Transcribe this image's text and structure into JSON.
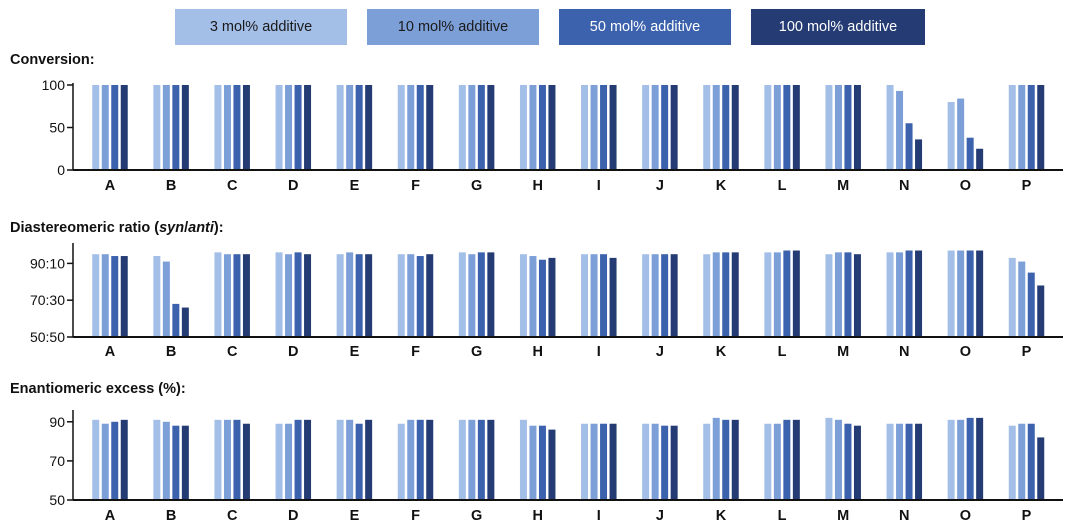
{
  "legend": {
    "items": [
      {
        "label": "3 mol% additive",
        "color": "#a3bfe8",
        "text_color": "#1a1a1a"
      },
      {
        "label": "10 mol% additive",
        "color": "#7d9fd8",
        "text_color": "#1a1a1a"
      },
      {
        "label": "50 mol% additive",
        "color": "#3c62ad",
        "text_color": "#ffffff"
      },
      {
        "label": "100 mol% additive",
        "color": "#243c73",
        "text_color": "#ffffff"
      }
    ]
  },
  "chart_data": [
    {
      "type": "bar",
      "title": "Conversion:",
      "categories": [
        "A",
        "B",
        "C",
        "D",
        "E",
        "F",
        "G",
        "H",
        "I",
        "J",
        "K",
        "L",
        "M",
        "N",
        "O",
        "P"
      ],
      "ylim": [
        0,
        100
      ],
      "ticks": [
        {
          "value": 0,
          "label": "0"
        },
        {
          "value": 50,
          "label": "50"
        },
        {
          "value": 100,
          "label": "100"
        }
      ],
      "series": [
        {
          "values": [
            100,
            100,
            100,
            100,
            100,
            100,
            100,
            100,
            100,
            100,
            100,
            100,
            100,
            100,
            80,
            100
          ]
        },
        {
          "values": [
            100,
            100,
            100,
            100,
            100,
            100,
            100,
            100,
            100,
            100,
            100,
            100,
            100,
            93,
            84,
            100
          ]
        },
        {
          "values": [
            100,
            100,
            100,
            100,
            100,
            100,
            100,
            100,
            100,
            100,
            100,
            100,
            100,
            55,
            38,
            100
          ]
        },
        {
          "values": [
            100,
            100,
            100,
            100,
            100,
            100,
            100,
            100,
            100,
            100,
            100,
            100,
            100,
            36,
            25,
            100
          ]
        }
      ]
    },
    {
      "type": "bar",
      "title": "Diastereomeric ratio (syn/anti):",
      "title_parts": [
        {
          "text": "Diastereomeric ratio (",
          "italic": false
        },
        {
          "text": "syn",
          "italic": true
        },
        {
          "text": "/",
          "italic": false
        },
        {
          "text": "anti",
          "italic": true
        },
        {
          "text": "):",
          "italic": false
        }
      ],
      "categories": [
        "A",
        "B",
        "C",
        "D",
        "E",
        "F",
        "G",
        "H",
        "I",
        "J",
        "K",
        "L",
        "M",
        "N",
        "O",
        "P"
      ],
      "ylim": [
        50,
        100
      ],
      "ticks": [
        {
          "value": 50,
          "label": "50:50"
        },
        {
          "value": 70,
          "label": "70:30"
        },
        {
          "value": 90,
          "label": "90:10"
        }
      ],
      "series": [
        {
          "values": [
            95,
            94,
            96,
            96,
            95,
            95,
            96,
            95,
            95,
            95,
            95,
            96,
            95,
            96,
            97,
            93
          ]
        },
        {
          "values": [
            95,
            91,
            95,
            95,
            96,
            95,
            95,
            94,
            95,
            95,
            96,
            96,
            96,
            96,
            97,
            91
          ]
        },
        {
          "values": [
            94,
            68,
            95,
            96,
            95,
            94,
            96,
            92,
            95,
            95,
            96,
            97,
            96,
            97,
            97,
            85
          ]
        },
        {
          "values": [
            94,
            66,
            95,
            95,
            95,
            95,
            96,
            93,
            93,
            95,
            96,
            97,
            95,
            97,
            97,
            78
          ]
        }
      ]
    },
    {
      "type": "bar",
      "title": "Enantiomeric excess (%):",
      "categories": [
        "A",
        "B",
        "C",
        "D",
        "E",
        "F",
        "G",
        "H",
        "I",
        "J",
        "K",
        "L",
        "M",
        "N",
        "O",
        "P"
      ],
      "ylim": [
        50,
        95
      ],
      "ticks": [
        {
          "value": 50,
          "label": "50"
        },
        {
          "value": 70,
          "label": "70"
        },
        {
          "value": 90,
          "label": "90"
        }
      ],
      "series": [
        {
          "values": [
            91,
            91,
            91,
            89,
            91,
            89,
            91,
            91,
            89,
            89,
            89,
            89,
            92,
            89,
            91,
            88
          ]
        },
        {
          "values": [
            89,
            90,
            91,
            89,
            91,
            91,
            91,
            88,
            89,
            89,
            92,
            89,
            91,
            89,
            91,
            89
          ]
        },
        {
          "values": [
            90,
            88,
            91,
            91,
            89,
            91,
            91,
            88,
            89,
            88,
            91,
            91,
            89,
            89,
            92,
            89
          ]
        },
        {
          "values": [
            91,
            88,
            89,
            91,
            91,
            91,
            91,
            86,
            89,
            88,
            91,
            91,
            88,
            89,
            92,
            82
          ]
        }
      ]
    }
  ]
}
